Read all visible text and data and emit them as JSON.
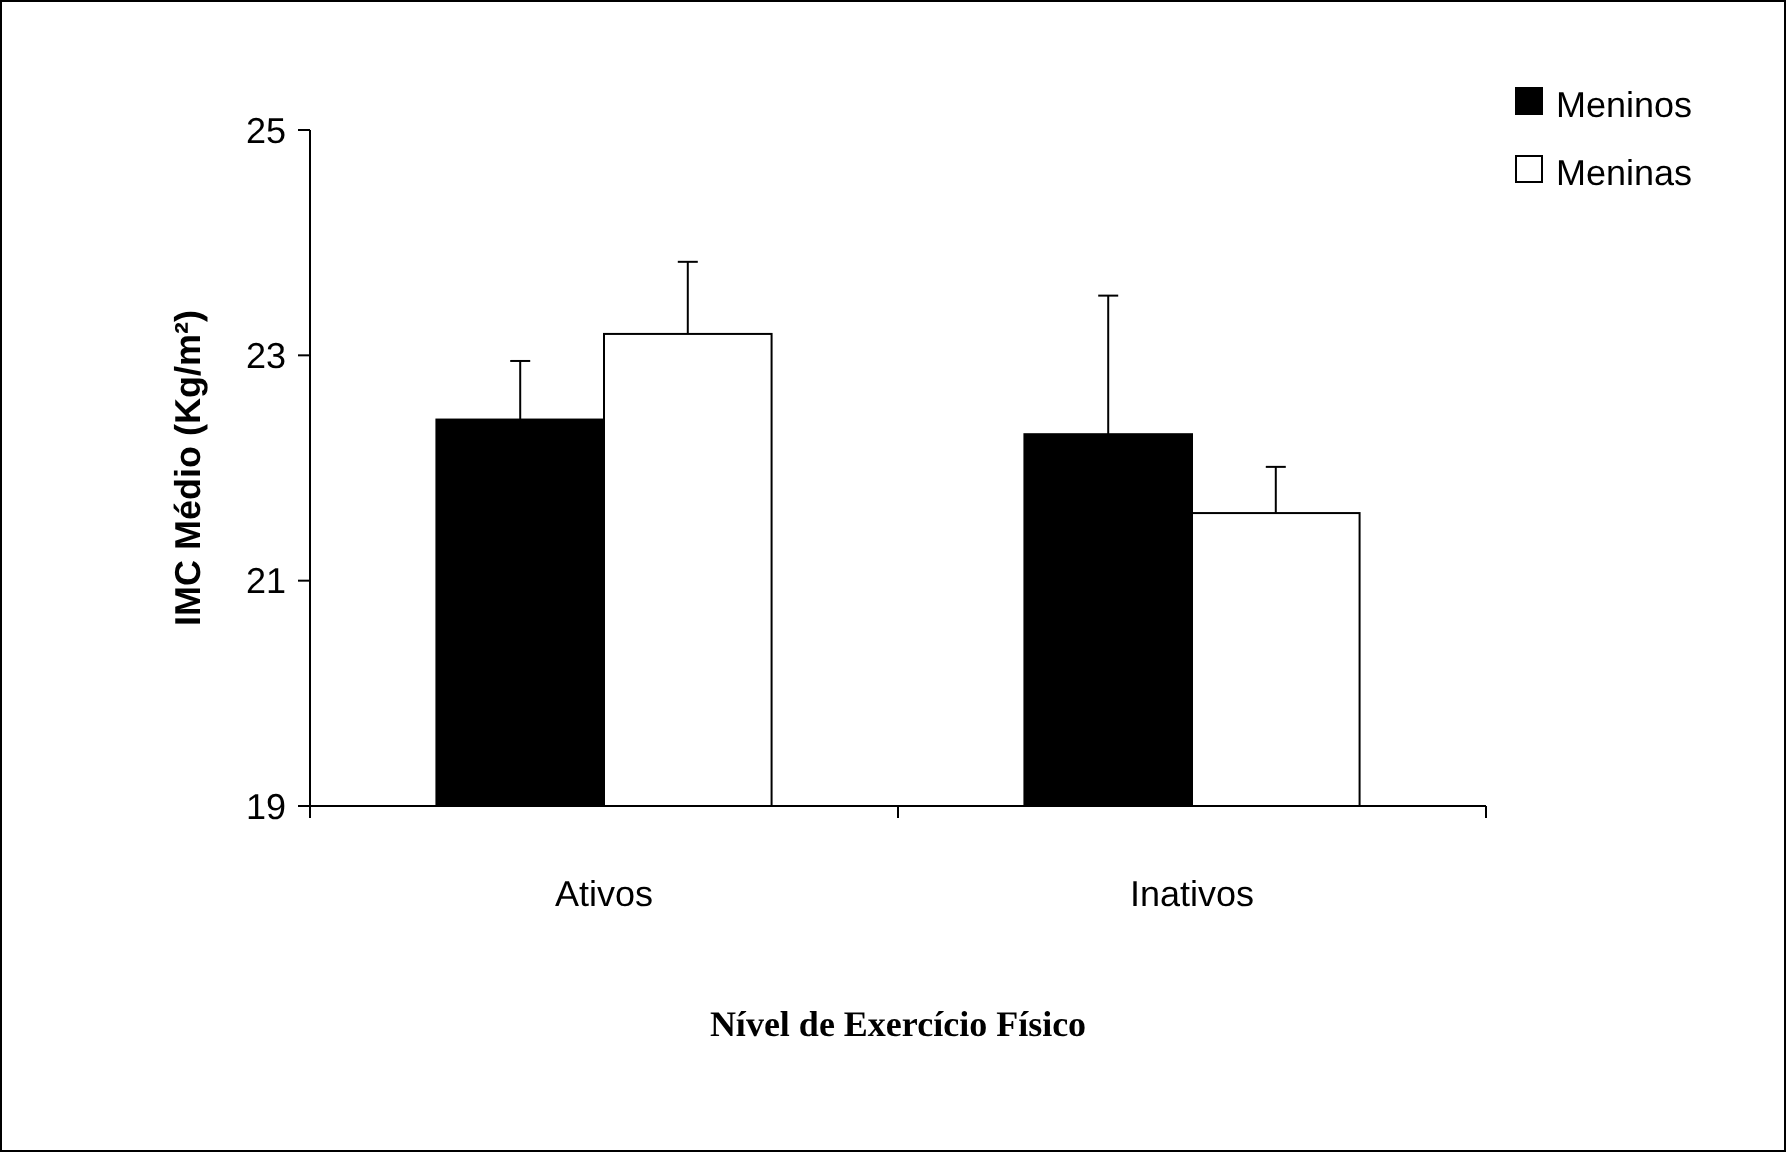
{
  "chart_data": {
    "type": "bar",
    "xlabel": "Nível de Exercício Físico",
    "ylabel": "IMC Médio (Kg/m²)",
    "categories": [
      "Ativos",
      "Inativos"
    ],
    "series": [
      {
        "name": "Meninos",
        "color": "#000000",
        "values": [
          22.43,
          22.3
        ],
        "errors": [
          0.52,
          1.23
        ]
      },
      {
        "name": "Meninas",
        "color": "#ffffff",
        "values": [
          23.19,
          21.6
        ],
        "errors": [
          0.64,
          0.41
        ]
      }
    ],
    "ylim": [
      19,
      25
    ],
    "yticks": [
      19,
      21,
      23,
      25
    ],
    "grid": false,
    "legend": "top right"
  }
}
